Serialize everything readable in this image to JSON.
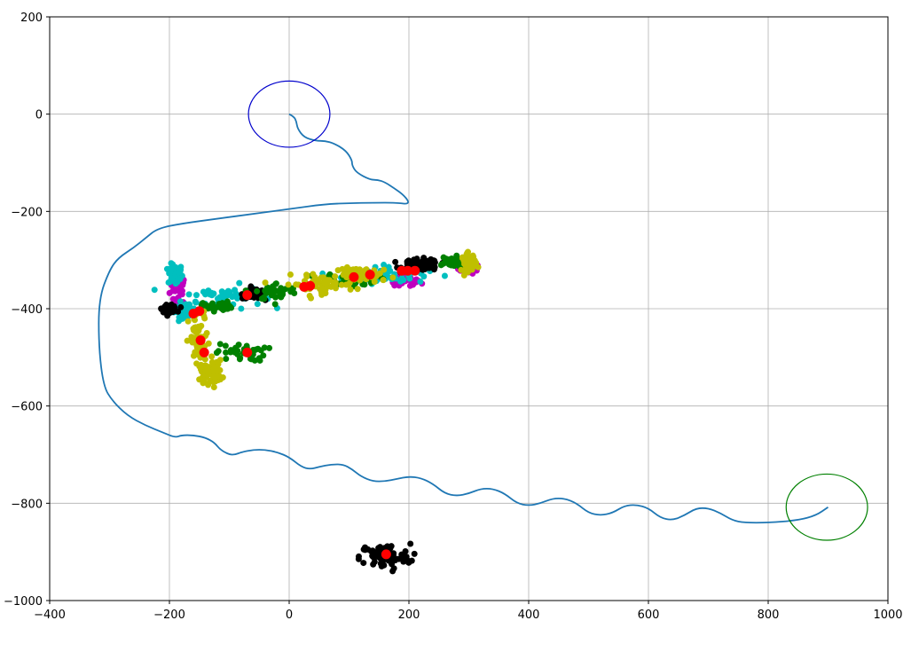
{
  "chart_data": {
    "type": "scatter",
    "xlim": [
      -400,
      1000
    ],
    "ylim": [
      -1000,
      200
    ],
    "xticks": [
      -400,
      -200,
      0,
      200,
      400,
      600,
      800,
      1000
    ],
    "xtick_labels": [
      "−400",
      "−200",
      "0",
      "200",
      "400",
      "600",
      "800",
      "1000"
    ],
    "yticks": [
      -1000,
      -800,
      -600,
      -400,
      -200,
      0,
      200
    ],
    "ytick_labels": [
      "−1000",
      "−800",
      "−600",
      "−400",
      "−200",
      "0",
      "200"
    ],
    "grid": true,
    "colors": {
      "path": "#1f77b4",
      "start_circle": "#0000cc",
      "end_circle": "#008000",
      "centroids": "#ff0000",
      "magenta": "#bf00bf",
      "cyan": "#00bfbf",
      "black": "#000000",
      "green": "#008000",
      "yellow": "#bfbf00"
    },
    "path": {
      "x": [
        0,
        8,
        12,
        14,
        25,
        45,
        60,
        75,
        95,
        105,
        105,
        112,
        135,
        148,
        160,
        175,
        190,
        200,
        196,
        180,
        140,
        100,
        60,
        0,
        -60,
        -120,
        -180,
        -220,
        -240,
        -260,
        -285,
        -300,
        -318,
        -318,
        -310,
        -295,
        -270,
        -240,
        -210,
        -190,
        -180,
        -160,
        -140,
        -125,
        -115,
        -100,
        -90,
        -80,
        -60,
        -40,
        -20,
        0,
        20,
        35,
        50,
        70,
        90,
        105,
        120,
        140,
        160,
        180,
        200,
        220,
        240,
        260,
        280,
        300,
        320,
        340,
        360,
        380,
        400,
        420,
        440,
        460,
        480,
        500,
        520,
        540,
        560,
        580,
        600,
        620,
        640,
        660,
        680,
        700,
        720,
        740,
        760,
        800,
        850,
        880,
        900
      ],
      "y": [
        0,
        -5,
        -15,
        -30,
        -48,
        -55,
        -55,
        -60,
        -75,
        -95,
        -105,
        -120,
        -135,
        -135,
        -140,
        -152,
        -165,
        -180,
        -185,
        -182,
        -182,
        -183,
        -185,
        -195,
        -205,
        -215,
        -225,
        -235,
        -255,
        -275,
        -295,
        -320,
        -380,
        -480,
        -560,
        -590,
        -620,
        -640,
        -655,
        -665,
        -660,
        -660,
        -665,
        -675,
        -690,
        -700,
        -700,
        -695,
        -690,
        -690,
        -695,
        -705,
        -725,
        -730,
        -725,
        -720,
        -720,
        -730,
        -745,
        -755,
        -755,
        -750,
        -745,
        -748,
        -760,
        -780,
        -785,
        -780,
        -770,
        -770,
        -780,
        -800,
        -805,
        -800,
        -790,
        -790,
        -800,
        -820,
        -825,
        -820,
        -805,
        -803,
        -810,
        -830,
        -835,
        -825,
        -810,
        -810,
        -820,
        -835,
        -840,
        -840,
        -835,
        -825,
        -808
      ]
    },
    "circles": [
      {
        "cx": 0,
        "cy": 0,
        "r": 68,
        "color": "start_circle"
      },
      {
        "cx": 898,
        "cy": -808,
        "r": 68,
        "color": "end_circle"
      }
    ],
    "clusters": [
      {
        "color": "magenta",
        "n": 90,
        "blobs": [
          [
            -185,
            -360,
            12,
            25
          ],
          [
            300,
            -318,
            15,
            8
          ],
          [
            190,
            -345,
            25,
            10
          ]
        ]
      },
      {
        "color": "cyan",
        "n": 220,
        "blobs": [
          [
            -190,
            -330,
            10,
            18
          ],
          [
            -110,
            -375,
            55,
            20
          ],
          [
            160,
            -330,
            60,
            15
          ],
          [
            -175,
            -405,
            15,
            10
          ]
        ]
      },
      {
        "color": "black",
        "n": 330,
        "blobs": [
          [
            -60,
            -370,
            15,
            8
          ],
          [
            220,
            -310,
            25,
            10
          ],
          [
            -200,
            -400,
            10,
            6
          ],
          [
            160,
            -910,
            35,
            22
          ]
        ]
      },
      {
        "color": "green",
        "n": 210,
        "blobs": [
          [
            -20,
            -365,
            30,
            15
          ],
          [
            100,
            -340,
            40,
            12
          ],
          [
            270,
            -305,
            25,
            10
          ],
          [
            -80,
            -490,
            35,
            15
          ],
          [
            -120,
            -395,
            20,
            8
          ]
        ]
      },
      {
        "color": "yellow",
        "n": 290,
        "blobs": [
          [
            -150,
            -470,
            15,
            50
          ],
          [
            -130,
            -530,
            15,
            20
          ],
          [
            50,
            -350,
            50,
            15
          ],
          [
            130,
            -330,
            40,
            12
          ],
          [
            300,
            -305,
            10,
            15
          ]
        ]
      }
    ],
    "centroids": {
      "x": [
        -160,
        -150,
        -148,
        -142,
        -70,
        -70,
        25,
        35,
        108,
        135,
        188,
        198,
        210,
        162
      ],
      "y": [
        -410,
        -405,
        -465,
        -490,
        -372,
        -490,
        -355,
        -353,
        -335,
        -330,
        -322,
        -322,
        -322,
        -905
      ]
    }
  }
}
